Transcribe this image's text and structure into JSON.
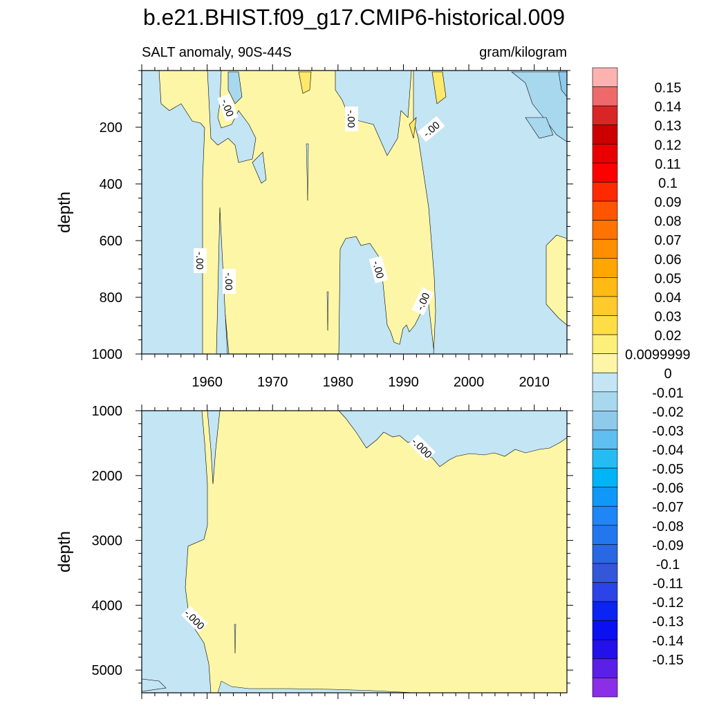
{
  "title": "b.e21.BHIST.f09_g17.CMIP6-historical.009",
  "subtitle_left": "SALT anomaly, 90S-44S",
  "subtitle_right": "gram/kilogram",
  "colors": {
    "positive_fill": "#fdf6a6",
    "negative_fill": "#c3e5f4",
    "negative_deeper": "#a8d8ee",
    "negative_deepest": "#8fcaeb",
    "positive_deeper": "#fde96a",
    "line": "#000000"
  },
  "chart_data": [
    {
      "type": "heatmap",
      "panel": "upper",
      "ylabel": "depth",
      "xlabel": "",
      "xlim": [
        1950,
        2015
      ],
      "ylim": [
        1000,
        0
      ],
      "x_ticks": [
        "1960",
        "1970",
        "1980",
        "1990",
        "2000",
        "2010"
      ],
      "y_ticks": [
        "200",
        "400",
        "600",
        "800",
        "1000"
      ],
      "y_tick_values": [
        200,
        400,
        600,
        800,
        1000
      ],
      "contour_labels": [
        "-.00",
        "-.00",
        "-.00",
        "-.00",
        "-.00",
        "-.00",
        "-.00"
      ],
      "regions": [
        {
          "sign": "negative",
          "x_range": [
            1950,
            1959.5
          ],
          "depth_range": [
            50,
            1000
          ]
        },
        {
          "sign": "positive",
          "x_range": [
            1960,
            1980
          ],
          "depth_range": [
            150,
            1000
          ]
        },
        {
          "sign": "negative",
          "x_range": [
            1962,
            1963.5
          ],
          "depth_range": [
            490,
            1000
          ]
        },
        {
          "sign": "negative",
          "x_range": [
            1981,
            1991
          ],
          "depth_range": [
            600,
            1000
          ]
        },
        {
          "sign": "negative",
          "x_range": [
            1992,
            2015
          ],
          "depth_range": [
            0,
            1000
          ]
        },
        {
          "sign": "positive",
          "x_range": [
            2011.5,
            2015
          ],
          "depth_range": [
            580,
            900
          ]
        }
      ]
    },
    {
      "type": "heatmap",
      "panel": "lower",
      "ylabel": "depth",
      "xlabel": "",
      "xlim": [
        1950,
        2015
      ],
      "ylim": [
        5350,
        1000
      ],
      "y_ticks": [
        "1000",
        "2000",
        "3000",
        "4000",
        "5000"
      ],
      "y_tick_values": [
        1000,
        2000,
        3000,
        4000,
        5000
      ],
      "contour_labels": [
        "-.000",
        "-.000"
      ],
      "regions": [
        {
          "sign": "negative",
          "x_range": [
            1950,
            1959
          ],
          "depth_range": [
            1000,
            5350
          ]
        },
        {
          "sign": "positive",
          "x_range": [
            1960,
            2015
          ],
          "depth_range": [
            1000,
            5350
          ]
        },
        {
          "sign": "negative",
          "x_range": [
            1980,
            2015
          ],
          "depth_range": [
            1000,
            1850
          ]
        }
      ]
    }
  ],
  "colorbar": {
    "labels": [
      "0.15",
      "0.14",
      "0.13",
      "0.12",
      "0.11",
      "0.1",
      "0.09",
      "0.08",
      "0.07",
      "0.06",
      "0.05",
      "0.04",
      "0.03",
      "0.02",
      "0.0099999",
      "0",
      "-0.01",
      "-0.02",
      "-0.03",
      "-0.04",
      "-0.05",
      "-0.06",
      "-0.07",
      "-0.08",
      "-0.09",
      "-0.1",
      "-0.11",
      "-0.12",
      "-0.13",
      "-0.14",
      "-0.15"
    ],
    "colors": [
      "#fdb2b2",
      "#ee6a6a",
      "#d82626",
      "#cc0000",
      "#e80000",
      "#ff0000",
      "#ff2a00",
      "#ff5500",
      "#ff7300",
      "#ff8f00",
      "#ffa600",
      "#ffba13",
      "#ffcb2a",
      "#ffde45",
      "#fdf07a",
      "#fdf6a6",
      "#c3e5f4",
      "#a8d8ee",
      "#8fcaeb",
      "#5fbff0",
      "#25bcf4",
      "#00b4f8",
      "#1098f8",
      "#1e86f6",
      "#2277ee",
      "#2868e2",
      "#3456d8",
      "#2a44e8",
      "#0a24f4",
      "#0a10f0",
      "#2410e8",
      "#5a20e6",
      "#8a2ee8"
    ]
  }
}
